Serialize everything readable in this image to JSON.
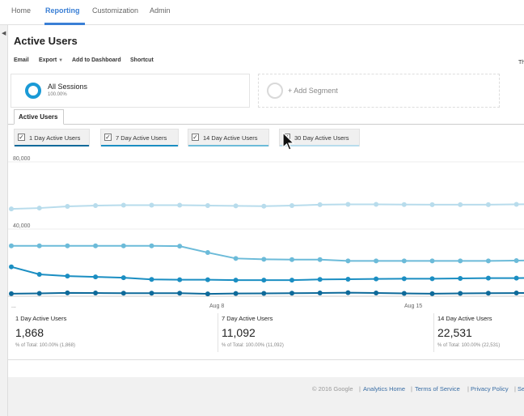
{
  "topnav": {
    "tabs": [
      {
        "label": "Home",
        "active": false
      },
      {
        "label": "Reporting",
        "active": true
      },
      {
        "label": "Customization",
        "active": false
      },
      {
        "label": "Admin",
        "active": false
      }
    ]
  },
  "page": {
    "title": "Active Users",
    "toolbar": {
      "email": "Email",
      "export": "Export",
      "add_to_dashboard": "Add to Dashboard",
      "shortcut": "Shortcut",
      "right_label": "Th"
    }
  },
  "segments": {
    "primary": {
      "name": "All Sessions",
      "pct": "100.00%"
    },
    "add": "+ Add Segment"
  },
  "content_tab": "Active Users",
  "metrics": [
    {
      "label": "1 Day Active Users",
      "checked": true,
      "color": "#0e6a9a"
    },
    {
      "label": "7 Day Active Users",
      "checked": true,
      "color": "#1b8ec2"
    },
    {
      "label": "14 Day Active Users",
      "checked": true,
      "color": "#6cbbd9"
    },
    {
      "label": "30 Day Active Users",
      "checked": true,
      "color": "#b8dcec"
    }
  ],
  "chart_data": {
    "type": "line",
    "y_ticks": [
      "80,000",
      "40,000"
    ],
    "x_ticks": [
      "...",
      "Aug 8",
      "Aug 15"
    ],
    "ylim": [
      0,
      80000
    ],
    "grid": true,
    "series": [
      {
        "name": "30 Day Active Users",
        "color": "#b8dcec",
        "values": [
          52000,
          52500,
          53500,
          54000,
          54200,
          54200,
          54200,
          54000,
          53800,
          53600,
          54000,
          54500,
          54700,
          54700,
          54600,
          54500,
          54500,
          54500,
          54700,
          55000
        ]
      },
      {
        "name": "14 Day Active Users",
        "color": "#6cbbd9",
        "values": [
          30000,
          30000,
          30000,
          30000,
          30000,
          30000,
          29800,
          26000,
          22500,
          22000,
          21800,
          21800,
          21000,
          21000,
          21000,
          21000,
          21000,
          21000,
          21200,
          21500
        ]
      },
      {
        "name": "7 Day Active Users",
        "color": "#1b8ec2",
        "values": [
          17500,
          13000,
          12000,
          11500,
          11000,
          10000,
          9800,
          9800,
          9600,
          9600,
          9600,
          10000,
          10100,
          10300,
          10400,
          10400,
          10600,
          10800,
          10800,
          11000
        ]
      },
      {
        "name": "1 Day Active Users",
        "color": "#0e6a9a",
        "values": [
          1500,
          1700,
          2000,
          1900,
          1800,
          1800,
          1800,
          1400,
          1600,
          1700,
          1800,
          1900,
          2100,
          1900,
          1700,
          1500,
          1700,
          1800,
          1900,
          2000
        ]
      }
    ]
  },
  "summary": [
    {
      "name": "1 Day Active Users",
      "value": "1,868",
      "total": "% of Total: 100.00% (1,868)"
    },
    {
      "name": "7 Day Active Users",
      "value": "11,092",
      "total": "% of Total: 100.00% (11,092)"
    },
    {
      "name": "14 Day Active Users",
      "value": "22,531",
      "total": "% of Total: 100.00% (22,531)"
    }
  ],
  "footer": {
    "copyright": "© 2016 Google",
    "analytics_home": "Analytics Home",
    "terms": "Terms of Service",
    "privacy": "Privacy Policy",
    "truncated": "Se",
    "separator": "|"
  }
}
